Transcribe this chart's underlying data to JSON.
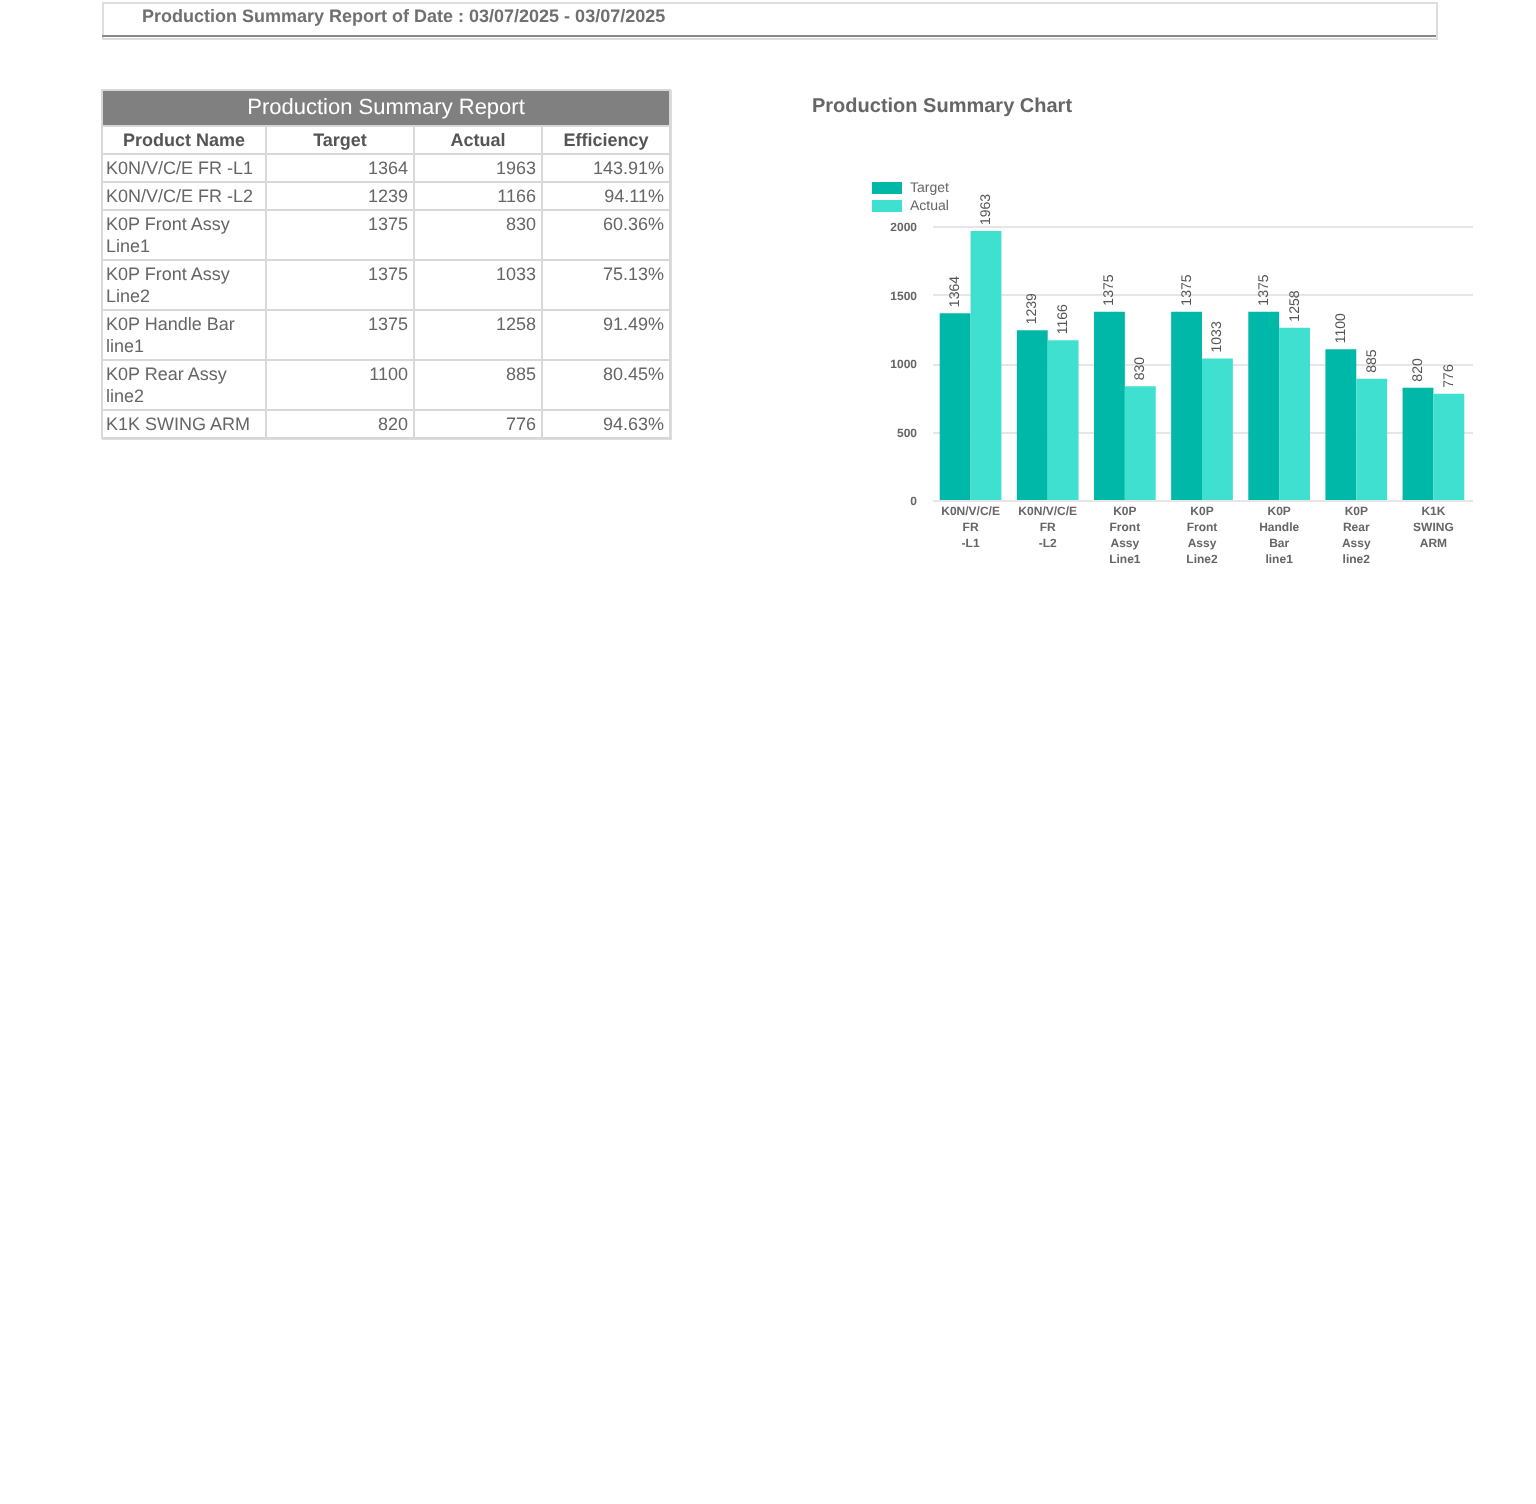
{
  "chart_data": [
    {
      "type": "other",
      "title": "Production Summary Report of Date :  03/07/2025  - 03/07/2025",
      "subtitle": "Production Summary Report",
      "categories": [
        "Product Name",
        "Target",
        "Actual",
        "Efficiency"
      ],
      "annotations": [
        "K0N/V/C/E FR -L1",
        "1364",
        "1963",
        "143.91%",
        "K0N/V/C/E FR -L2",
        "1239",
        "1166",
        "94.11%",
        "K0P Front Assy Line1",
        "1375",
        "830",
        "60.36%",
        "K0P Front Assy Line2",
        "1375",
        "1033",
        "75.13%",
        "K0P Handle Bar line1",
        "1375",
        "1258",
        "91.49%",
        "K0P Rear Assy line2",
        "1100",
        "885",
        "80.45%",
        "K1K SWING ARM",
        "820",
        "776",
        "94.63%"
      ]
    },
    {
      "type": "bar",
      "title": "Production Summary Chart",
      "categories": [
        "K0N/V/C/E FR -L1",
        "K0N/V/C/E FR -L2",
        "K0P Front Assy Line1",
        "K0P Front Assy Line2",
        "K0P Handle Bar line1",
        "K0P Rear Assy line2",
        "K1K SWING ARM"
      ],
      "series": [
        {
          "name": "Target",
          "color": "#00b8a8",
          "values": [
            1364,
            1239,
            1375,
            1375,
            1375,
            1100,
            820
          ]
        },
        {
          "name": "Actual",
          "color": "#40e0d0",
          "values": [
            1963,
            1166,
            830,
            1033,
            1258,
            885,
            776
          ]
        }
      ],
      "ylim": [
        0,
        2000
      ],
      "yticks": [
        0,
        500,
        1000,
        1500,
        2000
      ],
      "grid": "y",
      "legend": "top left",
      "data_labels": true
    }
  ]
}
